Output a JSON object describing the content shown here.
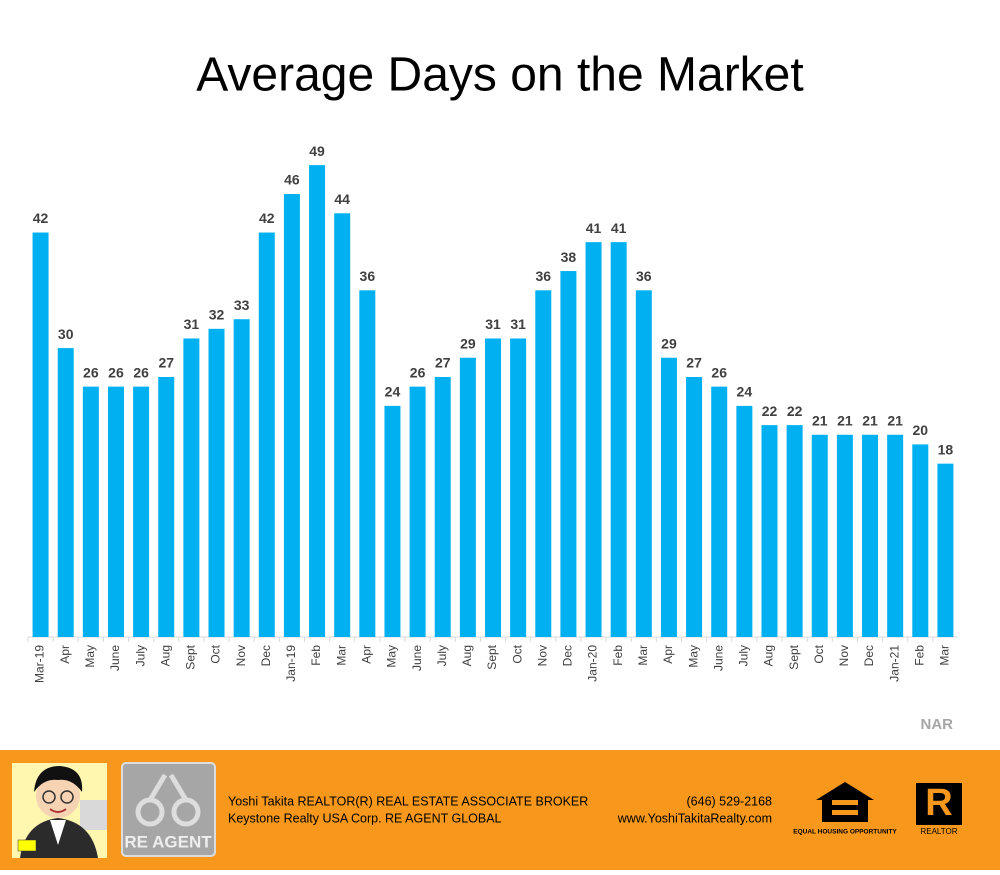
{
  "chart_data": {
    "type": "bar",
    "title": "Average Days on the Market",
    "categories": [
      "Mar-19",
      "Apr",
      "May",
      "June",
      "July",
      "Aug",
      "Sept",
      "Oct",
      "Nov",
      "Dec",
      "Jan-19",
      "Feb",
      "Mar",
      "Apr",
      "May",
      "June",
      "July",
      "Aug",
      "Sept",
      "Oct",
      "Nov",
      "Dec",
      "Jan-20",
      "Feb",
      "Mar",
      "Apr",
      "May",
      "June",
      "July",
      "Aug",
      "Sept",
      "Oct",
      "Nov",
      "Dec",
      "Jan-21",
      "Feb",
      "Mar"
    ],
    "values": [
      42,
      30,
      26,
      26,
      26,
      27,
      31,
      32,
      33,
      42,
      46,
      49,
      44,
      36,
      24,
      26,
      27,
      29,
      31,
      31,
      36,
      38,
      41,
      41,
      36,
      29,
      27,
      26,
      24,
      22,
      22,
      21,
      21,
      21,
      21,
      20,
      18
    ],
    "color": "#00b0f0",
    "ylim": [
      0,
      50
    ],
    "source": "NAR"
  },
  "footer": {
    "name_line": "Yoshi Takita REALTOR(R) REAL ESTATE ASSOCIATE BROKER",
    "phone": "(646) 529-2168",
    "company_line": "Keystone Realty USA Corp.  RE AGENT GLOBAL",
    "website": "www.YoshiTakitaRealty.com",
    "agent_logo": "RE AGENT",
    "equal_housing": "EQUAL HOUSING OPPORTUNITY",
    "realtor_letter": "R",
    "realtor": "REALTOR"
  }
}
